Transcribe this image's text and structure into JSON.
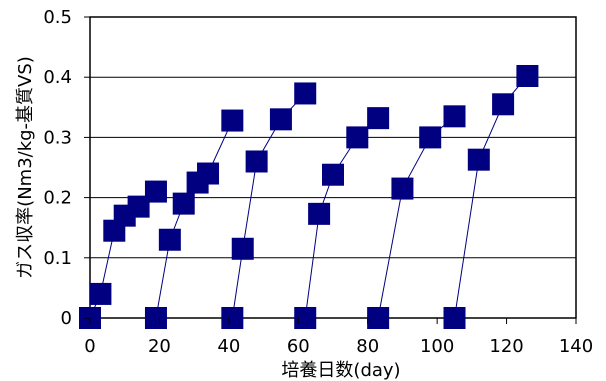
{
  "chart_data": {
    "type": "scatter",
    "title": "",
    "xlabel": "培養日数(day)",
    "ylabel": "ガス収率(Nm3/kg-基質VS)",
    "xlim": [
      0,
      140
    ],
    "ylim": [
      0,
      0.5
    ],
    "xticks": [
      "0",
      "20",
      "40",
      "60",
      "80",
      "100",
      "120",
      "140"
    ],
    "yticks": [
      "0",
      "0.1",
      "0.2",
      "0.3",
      "0.4",
      "0.5"
    ],
    "grid": "horizontal",
    "legend": "none",
    "marker": "square",
    "color": "#000080",
    "series": [
      {
        "x": [
          0,
          3,
          7,
          10,
          14,
          19
        ],
        "y": [
          0,
          0.04,
          0.145,
          0.17,
          0.185,
          0.21
        ]
      },
      {
        "x": [
          19,
          23,
          27,
          31,
          34,
          41
        ],
        "y": [
          0,
          0.13,
          0.19,
          0.225,
          0.24,
          0.328
        ]
      },
      {
        "x": [
          41,
          44,
          48,
          55,
          62
        ],
        "y": [
          0,
          0.115,
          0.26,
          0.33,
          0.373
        ]
      },
      {
        "x": [
          62,
          66,
          70,
          77,
          83
        ],
        "y": [
          0,
          0.173,
          0.238,
          0.3,
          0.332
        ]
      },
      {
        "x": [
          83,
          90,
          98,
          105
        ],
        "y": [
          0,
          0.215,
          0.3,
          0.335
        ]
      },
      {
        "x": [
          105,
          112,
          119,
          126
        ],
        "y": [
          0,
          0.263,
          0.355,
          0.402
        ]
      }
    ]
  }
}
